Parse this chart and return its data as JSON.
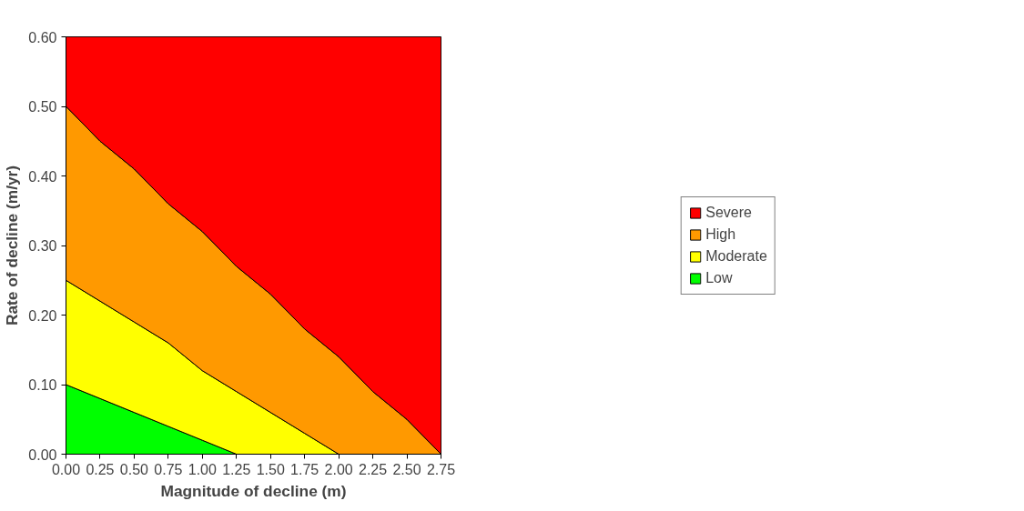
{
  "chart_data": {
    "type": "area",
    "stacked": true,
    "xlabel": "Magnitude of decline (m)",
    "ylabel": "Rate of decline (m/yr)",
    "x": [
      0,
      0.25,
      0.5,
      0.75,
      1.0,
      1.25,
      1.5,
      1.75,
      2.0,
      2.25,
      2.5,
      2.75
    ],
    "series": [
      {
        "name": "Low",
        "color": "#00ff00",
        "values": [
          0.1,
          0.08,
          0.06,
          0.04,
          0.02,
          0,
          0,
          0,
          0,
          0,
          0,
          0
        ]
      },
      {
        "name": "Moderate",
        "color": "#ffff00",
        "values": [
          0.15,
          0.14,
          0.13,
          0.12,
          0.1,
          0.09,
          0.06,
          0.03,
          0,
          0,
          0,
          0
        ]
      },
      {
        "name": "High",
        "color": "#ff9900",
        "values": [
          0.25,
          0.23,
          0.22,
          0.2,
          0.2,
          0.18,
          0.17,
          0.15,
          0.14,
          0.09,
          0.05,
          0
        ]
      },
      {
        "name": "Severe",
        "color": "#ff0000",
        "values": [
          0.1,
          0.15,
          0.19,
          0.24,
          0.28,
          0.33,
          0.37,
          0.42,
          0.46,
          0.51,
          0.55,
          0.6
        ]
      }
    ],
    "xlim": [
      0,
      2.75
    ],
    "xticks": [
      {
        "value": 0,
        "label": "0.00"
      },
      {
        "value": 0.25,
        "label": "0.25"
      },
      {
        "value": 0.5,
        "label": "0.50"
      },
      {
        "value": 0.75,
        "label": "0.75"
      },
      {
        "value": 1,
        "label": "1.00"
      },
      {
        "value": 1.25,
        "label": "1.25"
      },
      {
        "value": 1.5,
        "label": "1.50"
      },
      {
        "value": 1.75,
        "label": "1.75"
      },
      {
        "value": 2,
        "label": "2.00"
      },
      {
        "value": 2.25,
        "label": "2.25"
      },
      {
        "value": 2.5,
        "label": "2.50"
      },
      {
        "value": 2.75,
        "label": "2.75"
      }
    ],
    "ylim": [
      0,
      0.6
    ],
    "yticks": [
      {
        "value": 0,
        "label": "0.00"
      },
      {
        "value": 0.1,
        "label": "0.10"
      },
      {
        "value": 0.2,
        "label": "0.20"
      },
      {
        "value": 0.3,
        "label": "0.30"
      },
      {
        "value": 0.4,
        "label": "0.40"
      },
      {
        "value": 0.5,
        "label": "0.50"
      },
      {
        "value": 0.6,
        "label": "0.60"
      }
    ],
    "legend": "right",
    "grid": false
  }
}
